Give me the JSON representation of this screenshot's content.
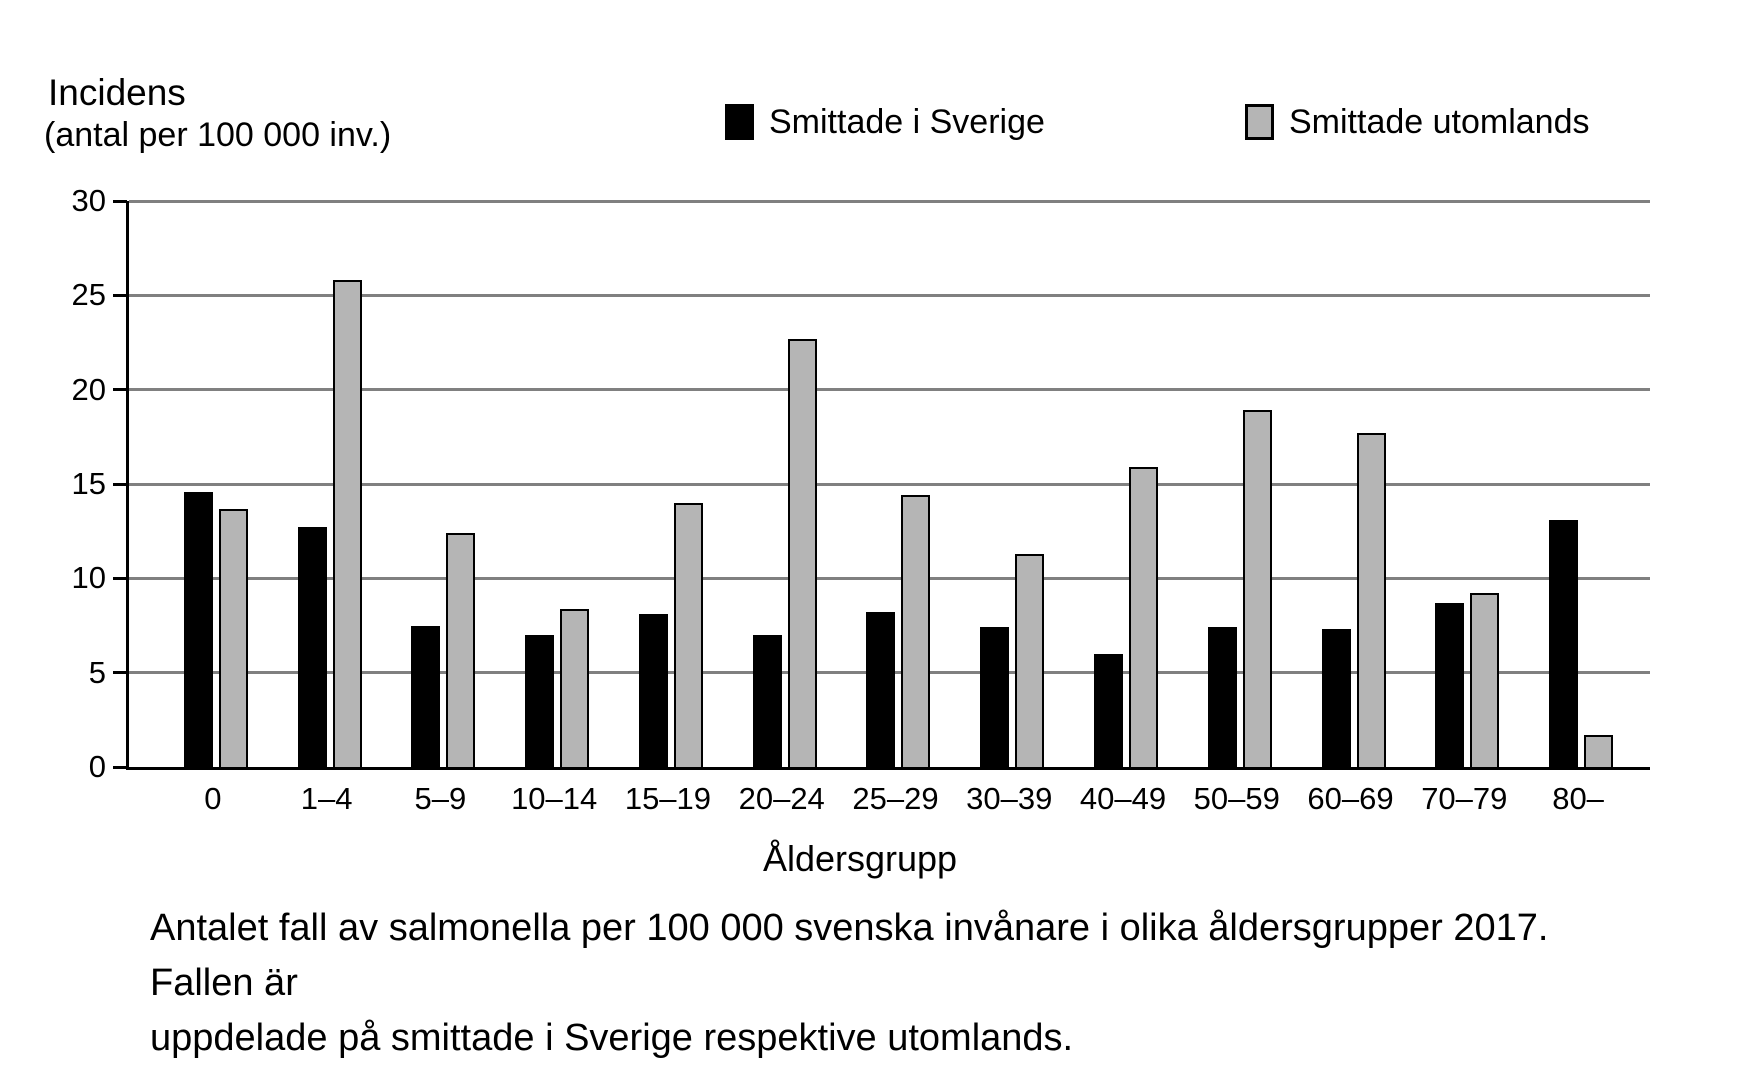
{
  "header": {
    "title": "Incidens",
    "subtitle": "(antal per 100 000 inv.)"
  },
  "legend": {
    "items": [
      {
        "label": "Smittade i Sverige",
        "color": "#000000"
      },
      {
        "label": "Smittade utomlands",
        "color": "#b5b5b5"
      }
    ]
  },
  "chart_data": {
    "type": "bar",
    "categories": [
      "0",
      "1–4",
      "5–9",
      "10–14",
      "15–19",
      "20–24",
      "25–29",
      "30–39",
      "40–49",
      "50–59",
      "60–69",
      "70–79",
      "80–"
    ],
    "series": [
      {
        "name": "Smittade i Sverige",
        "color": "#000000",
        "values": [
          14.6,
          12.7,
          7.5,
          7.0,
          8.1,
          7.0,
          8.2,
          7.4,
          6.0,
          7.4,
          7.3,
          8.7,
          13.1
        ]
      },
      {
        "name": "Smittade utomlands",
        "color": "#b5b5b5",
        "values": [
          13.7,
          25.8,
          12.4,
          8.4,
          14.0,
          22.7,
          14.4,
          11.3,
          15.9,
          18.9,
          17.7,
          9.2,
          1.7
        ]
      }
    ],
    "title": "Incidens (antal per 100 000 inv.)",
    "xlabel": "Åldersgrupp",
    "ylabel": "Incidens (antal per 100 000 inv.)",
    "ylim": [
      0,
      30
    ],
    "yticks": [
      0,
      5,
      10,
      15,
      20,
      25,
      30
    ],
    "grid": true,
    "legend_position": "top"
  },
  "xaxis": {
    "label": "Åldersgrupp"
  },
  "caption": {
    "lines": [
      "Antalet fall av salmonella per 100 000 svenska invånare i olika åldersgrupper 2017. Fallen är",
      "uppdelade på smittade i Sverige respektive utomlands."
    ]
  }
}
